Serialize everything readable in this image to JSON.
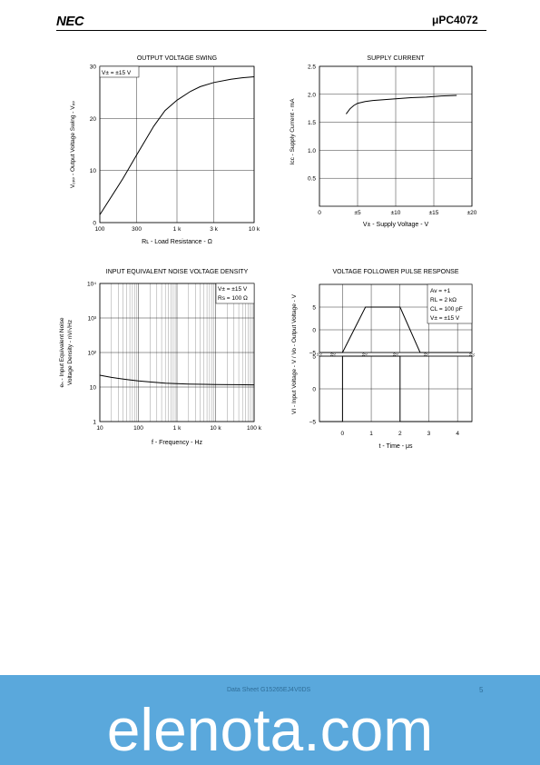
{
  "header": {
    "logo": "NEC",
    "part_number": "μPC4072"
  },
  "footer": {
    "doc_number": "Data Sheet G15265EJ4V0DS",
    "page": "5",
    "brand": "elenota.com"
  },
  "chart_data": [
    {
      "type": "line",
      "title": "OUTPUT VOLTAGE SWING",
      "xlabel": "Rʟ - Load Resistance - Ω",
      "ylabel": "Vₒₚₚ - Output Voltage Swing - Vₚₚ",
      "xscale": "log",
      "xlim": [
        100,
        10000
      ],
      "ylim": [
        0,
        30
      ],
      "x_ticks": [
        100,
        300,
        1000,
        3000,
        10000
      ],
      "x_tick_labels": [
        "100",
        "300",
        "1 k",
        "3 k",
        "10 k"
      ],
      "y_ticks": [
        0,
        10,
        20,
        30
      ],
      "y_tick_labels": [
        "0",
        "10",
        "20",
        "30"
      ],
      "grid": true,
      "annotation": "V± = ±15 V",
      "series": [
        {
          "x": [
            100,
            200,
            300,
            500,
            700,
            1000,
            1500,
            2000,
            3000,
            5000,
            7000,
            10000
          ],
          "y": [
            1.5,
            8.5,
            13,
            18.5,
            21.5,
            23.5,
            25.2,
            26.1,
            26.9,
            27.5,
            27.8,
            28
          ]
        }
      ]
    },
    {
      "type": "line",
      "title": "SUPPLY CURRENT",
      "xlabel": "V± - Supply Voltage - V",
      "ylabel": "Icc - Supply Current - mA",
      "xlim": [
        0,
        20
      ],
      "ylim": [
        0,
        2.5
      ],
      "x_ticks": [
        0,
        5,
        10,
        15,
        20
      ],
      "x_tick_labels": [
        "0",
        "±5",
        "±10",
        "±15",
        "±20"
      ],
      "y_ticks": [
        0.5,
        1.0,
        1.5,
        2.0,
        2.5
      ],
      "y_tick_labels": [
        "0.5",
        "1.0",
        "1.5",
        "2.0",
        "2.5"
      ],
      "grid": true,
      "series": [
        {
          "x": [
            3.5,
            4,
            4.5,
            5,
            6,
            7,
            8,
            10,
            12,
            14,
            16,
            18
          ],
          "y": [
            1.65,
            1.74,
            1.8,
            1.84,
            1.87,
            1.89,
            1.9,
            1.92,
            1.94,
            1.95,
            1.97,
            1.98
          ]
        }
      ]
    },
    {
      "type": "line",
      "title": "INPUT EQUIVALENT NOISE VOLTAGE DENSITY",
      "xlabel": "f - Frequency - Hz",
      "ylabel_lines": [
        "eₙ - Input Equivalent Noise",
        "Voltage Density - nV/√Hz"
      ],
      "xscale": "log",
      "yscale": "log",
      "xlim": [
        10,
        100000
      ],
      "ylim": [
        1,
        10000
      ],
      "x_ticks": [
        10,
        100,
        1000,
        10000,
        100000
      ],
      "x_tick_labels": [
        "10",
        "100",
        "1 k",
        "10 k",
        "100 k"
      ],
      "y_ticks": [
        1,
        10,
        100,
        1000,
        10000
      ],
      "y_tick_labels": [
        "1",
        "10",
        "10²",
        "10³",
        "10⁴"
      ],
      "grid": true,
      "annotations": [
        "V± = ±15 V",
        "Rs = 100 Ω"
      ],
      "series": [
        {
          "x": [
            10,
            20,
            50,
            100,
            200,
            500,
            1000,
            2000,
            5000,
            10000,
            30000,
            100000
          ],
          "y": [
            22,
            19,
            16.5,
            15,
            14,
            13,
            12.5,
            12.2,
            12,
            11.8,
            11.7,
            11.6
          ]
        }
      ]
    },
    {
      "type": "line",
      "title": "VOLTAGE FOLLOWER PULSE RESPONSE",
      "xlabel": "t - Time - μs",
      "ylabel": "VI - Input Voltage - V / Vo - Output Voltage - V",
      "xlim": [
        -0.8,
        4.5
      ],
      "x_ticks": [
        0,
        1,
        2,
        3,
        4
      ],
      "x_tick_labels": [
        "0",
        "1",
        "2",
        "3",
        "4"
      ],
      "grid": true,
      "annotations": [
        "Av = +1",
        "RL = 2 kΩ",
        "CL = 100 pF",
        "V± = ±15 V"
      ],
      "output_panel": {
        "ylim": [
          -5,
          10
        ],
        "y_ticks": [
          -5,
          0,
          5
        ],
        "y_tick_labels": [
          "−5",
          "0",
          "5"
        ],
        "series": {
          "name": "Vo",
          "x": [
            -0.8,
            0,
            0.8,
            2,
            2.7,
            4.5
          ],
          "y": [
            -5,
            -5,
            5,
            5,
            -5,
            -5
          ]
        }
      },
      "input_panel": {
        "ylim": [
          -5,
          5
        ],
        "y_ticks": [
          -5,
          0,
          5
        ],
        "y_tick_labels": [
          "−5",
          "0",
          "5"
        ],
        "series": {
          "name": "VI",
          "x": [
            -0.8,
            0,
            0,
            2,
            2,
            4.5
          ],
          "y": [
            -5,
            -5,
            5,
            5,
            -5,
            -5
          ]
        }
      }
    }
  ]
}
